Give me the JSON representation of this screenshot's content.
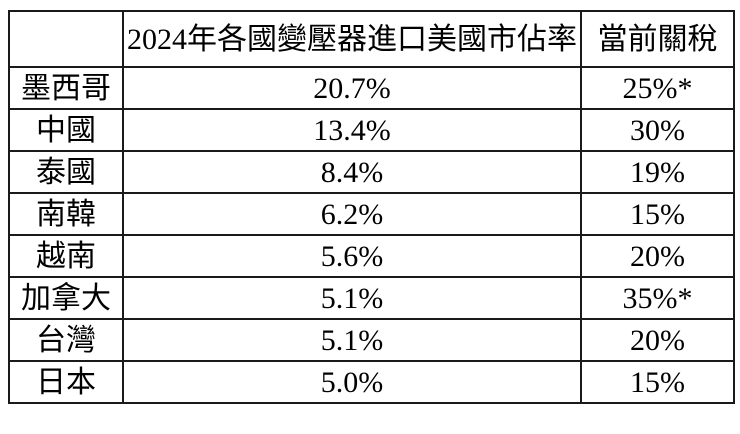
{
  "table": {
    "header": {
      "corner": "",
      "share_col": "2024年各國變壓器進口美國市佔率",
      "tariff_col": "當前關稅"
    },
    "rows": [
      {
        "country": "墨西哥",
        "share": "20.7%",
        "tariff": "25%*"
      },
      {
        "country": "中國",
        "share": "13.4%",
        "tariff": "30%"
      },
      {
        "country": "泰國",
        "share": "8.4%",
        "tariff": "19%"
      },
      {
        "country": "南韓",
        "share": "6.2%",
        "tariff": "15%"
      },
      {
        "country": "越南",
        "share": "5.6%",
        "tariff": "20%"
      },
      {
        "country": "加拿大",
        "share": "5.1%",
        "tariff": "35%*"
      },
      {
        "country": "台灣",
        "share": "5.1%",
        "tariff": "20%"
      },
      {
        "country": "日本",
        "share": "5.0%",
        "tariff": "15%"
      }
    ],
    "colors": {
      "background": "#ffffff",
      "text": "#000000",
      "border": "#1a1a1a"
    }
  }
}
